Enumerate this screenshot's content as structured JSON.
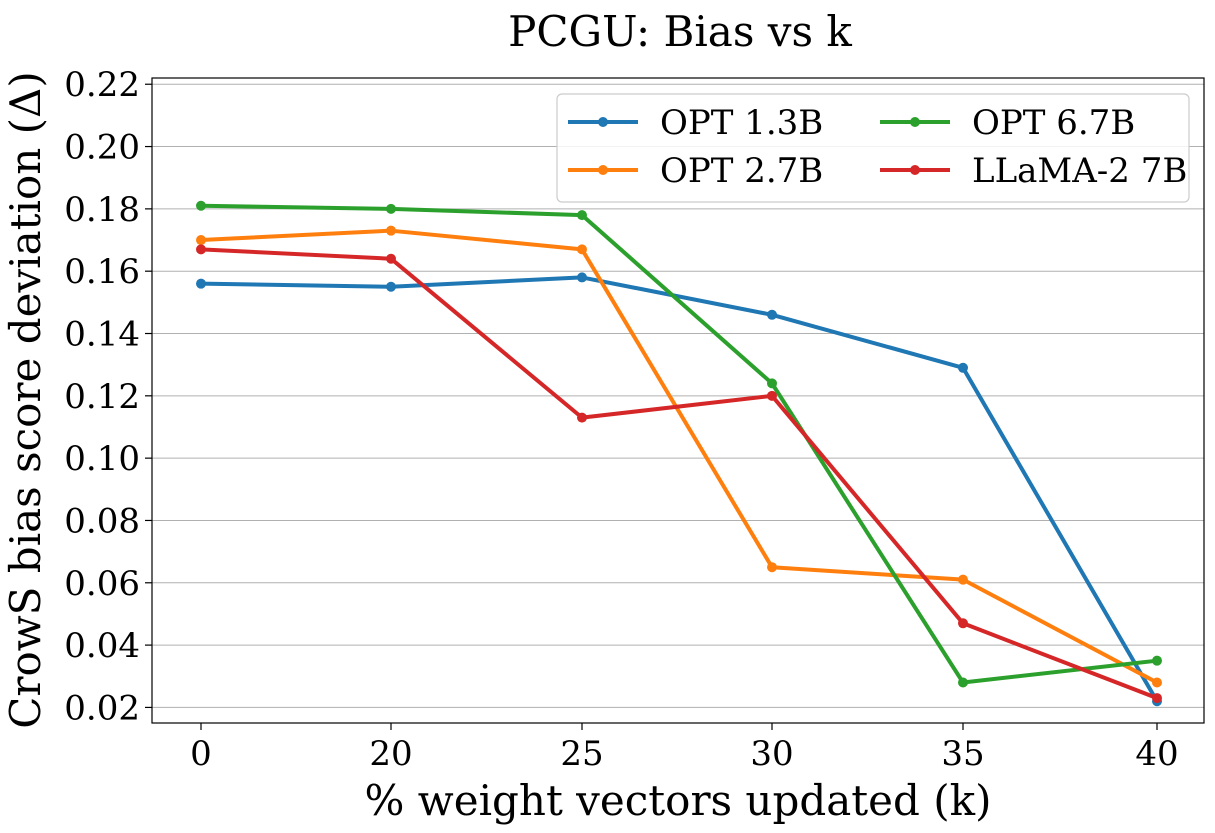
{
  "chart_data": {
    "type": "line",
    "title": "PCGU: Bias vs k",
    "xlabel": "% weight vectors updated (k)",
    "ylabel": "CrowS bias score deviation (Δ)",
    "categories": [
      "0",
      "20",
      "25",
      "30",
      "35",
      "40"
    ],
    "ylim": [
      0.015,
      0.222
    ],
    "yticks": [
      "0.02",
      "0.04",
      "0.06",
      "0.08",
      "0.10",
      "0.12",
      "0.14",
      "0.16",
      "0.18",
      "0.20",
      "0.22"
    ],
    "grid": "horizontal",
    "legend": "top-right",
    "series": [
      {
        "name": "OPT 1.3B",
        "color": "#1f77b4",
        "values": [
          0.156,
          0.155,
          0.158,
          0.146,
          0.129,
          0.022
        ]
      },
      {
        "name": "OPT 2.7B",
        "color": "#ff7f0e",
        "values": [
          0.17,
          0.173,
          0.167,
          0.065,
          0.061,
          0.028
        ]
      },
      {
        "name": "OPT 6.7B",
        "color": "#2ca02c",
        "values": [
          0.181,
          0.18,
          0.178,
          0.124,
          0.028,
          0.035
        ]
      },
      {
        "name": "LLaMA-2 7B",
        "color": "#d62728",
        "values": [
          0.167,
          0.164,
          0.113,
          0.12,
          0.047,
          0.023
        ]
      }
    ]
  }
}
